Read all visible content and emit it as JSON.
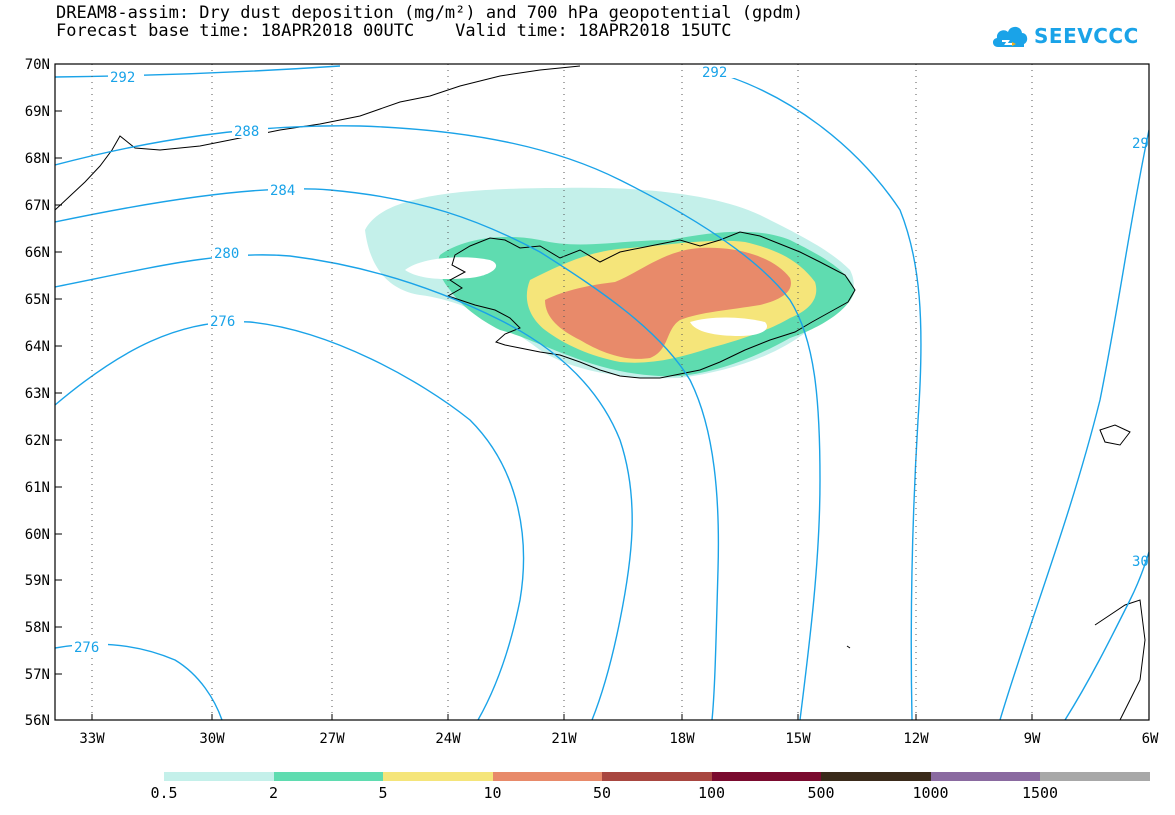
{
  "header": {
    "title_line1": "DREAM8-assim: Dry dust deposition (mg/m²) and 700 hPa geopotential (gpdm)",
    "title_line2": "Forecast base time: 18APR2018 00UTC    Valid time: 18APR2018 15UTC"
  },
  "logo": {
    "text": "SEEVCCC",
    "icon": "cloud-icon"
  },
  "map": {
    "lat_labels": [
      "70N",
      "69N",
      "68N",
      "67N",
      "66N",
      "65N",
      "64N",
      "63N",
      "62N",
      "61N",
      "60N",
      "59N",
      "58N",
      "57N",
      "56N"
    ],
    "lon_labels": [
      "33W",
      "30W",
      "27W",
      "24W",
      "21W",
      "18W",
      "15W",
      "12W",
      "9W",
      "6W"
    ],
    "contour_labels": [
      "292",
      "292",
      "288",
      "284",
      "280",
      "276",
      "276",
      "29",
      "30"
    ],
    "contour_color": "#1aa3e8"
  },
  "legend": {
    "colors": [
      "#c4f0ea",
      "#5fdcb0",
      "#f5e57a",
      "#e88a6a",
      "#a84640",
      "#7a0a2e",
      "#3a2a1a",
      "#8a6aa0",
      "#a8a8a8"
    ],
    "labels": [
      "0.5",
      "2",
      "5",
      "10",
      "50",
      "100",
      "500",
      "1000",
      "1500"
    ]
  }
}
